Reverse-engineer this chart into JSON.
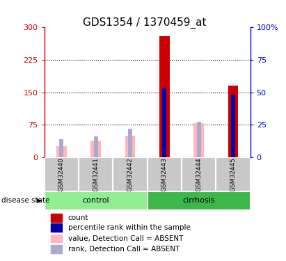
{
  "title": "GDS1354 / 1370459_at",
  "samples": [
    "GSM32440",
    "GSM32441",
    "GSM32442",
    "GSM32443",
    "GSM32444",
    "GSM32445"
  ],
  "groups": [
    {
      "label": "control",
      "indices": [
        0,
        1,
        2
      ],
      "color": "#90EE90"
    },
    {
      "label": "cirrhosis",
      "indices": [
        3,
        4,
        5
      ],
      "color": "#3CB84A"
    }
  ],
  "group_label_prefix": "disease state",
  "ylim_left": [
    0,
    300
  ],
  "ylim_right": [
    0,
    100
  ],
  "yticks_left": [
    0,
    75,
    150,
    225,
    300
  ],
  "yticks_right": [
    0,
    25,
    50,
    75,
    100
  ],
  "ytick_labels_left": [
    "0",
    "75",
    "150",
    "225",
    "300"
  ],
  "ytick_labels_right": [
    "0",
    "25",
    "50",
    "75",
    "100%"
  ],
  "left_axis_color": "#CC0000",
  "right_axis_color": "#0000CC",
  "bar_colors": {
    "count_present": "#CC0000",
    "count_absent": "#FFB6C1",
    "rank_present": "#0000AA",
    "rank_absent": "#AAAACC"
  },
  "count_values": [
    0,
    0,
    0,
    280,
    0,
    165
  ],
  "rank_values": [
    0,
    0,
    0,
    53,
    0,
    48
  ],
  "absent_count_values": [
    25,
    38,
    50,
    0,
    78,
    0
  ],
  "absent_rank_values": [
    14,
    16,
    22,
    0,
    27,
    0
  ],
  "legend_items": [
    {
      "label": "count",
      "color": "#CC0000"
    },
    {
      "label": "percentile rank within the sample",
      "color": "#0000AA"
    },
    {
      "label": "value, Detection Call = ABSENT",
      "color": "#FFB6C1"
    },
    {
      "label": "rank, Detection Call = ABSENT",
      "color": "#AAAACC"
    }
  ],
  "sample_area_color": "#C8C8C8",
  "title_fontsize": 11,
  "tick_fontsize": 8,
  "legend_fontsize": 7.5
}
